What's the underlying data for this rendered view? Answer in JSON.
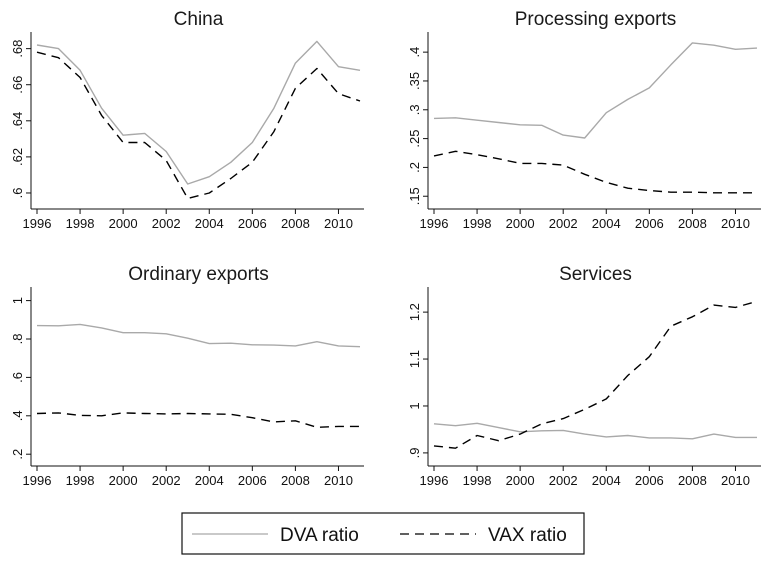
{
  "legend": {
    "dva_label": "DVA ratio",
    "vax_label": "VAX ratio",
    "dva_color": "#a9a9a9",
    "vax_color": "#000000"
  },
  "chart_data": [
    {
      "type": "line",
      "title": "China",
      "x": [
        1996,
        1997,
        1998,
        1999,
        2000,
        2001,
        2002,
        2003,
        2004,
        2005,
        2006,
        2007,
        2008,
        2009,
        2010,
        2011
      ],
      "xticks": [
        "1996",
        "1998",
        "2000",
        "2002",
        "2004",
        "2006",
        "2008",
        "2010"
      ],
      "yticks": [
        ".6",
        ".62",
        ".64",
        ".66",
        ".68"
      ],
      "ylim": [
        0.595,
        0.687
      ],
      "series": [
        {
          "name": "DVA ratio",
          "values": [
            0.682,
            0.68,
            0.668,
            0.647,
            0.632,
            0.633,
            0.623,
            0.605,
            0.609,
            0.617,
            0.628,
            0.647,
            0.672,
            0.684,
            0.67,
            0.668
          ]
        },
        {
          "name": "VAX ratio",
          "values": [
            0.678,
            0.675,
            0.664,
            0.643,
            0.628,
            0.628,
            0.618,
            0.597,
            0.6,
            0.608,
            0.617,
            0.634,
            0.658,
            0.669,
            0.655,
            0.651
          ]
        }
      ]
    },
    {
      "type": "line",
      "title": "Processing exports",
      "x": [
        1996,
        1997,
        1998,
        1999,
        2000,
        2001,
        2002,
        2003,
        2004,
        2005,
        2006,
        2007,
        2008,
        2009,
        2010,
        2011
      ],
      "xticks": [
        "1996",
        "1998",
        "2000",
        "2002",
        "2004",
        "2006",
        "2008",
        "2010"
      ],
      "yticks": [
        ".15",
        ".2",
        ".25",
        ".3",
        ".35",
        ".4"
      ],
      "ylim": [
        0.14,
        0.428
      ],
      "series": [
        {
          "name": "DVA ratio",
          "values": [
            0.285,
            0.286,
            0.282,
            0.278,
            0.274,
            0.273,
            0.256,
            0.251,
            0.295,
            0.318,
            0.338,
            0.378,
            0.416,
            0.412,
            0.405,
            0.407
          ]
        },
        {
          "name": "VAX ratio",
          "values": [
            0.22,
            0.228,
            0.222,
            0.215,
            0.207,
            0.207,
            0.204,
            0.188,
            0.174,
            0.164,
            0.16,
            0.157,
            0.157,
            0.156,
            0.156,
            0.156
          ]
        }
      ]
    },
    {
      "type": "line",
      "title": "Ordinary exports",
      "x": [
        1996,
        1997,
        1998,
        1999,
        2000,
        2001,
        2002,
        2003,
        2004,
        2005,
        2006,
        2007,
        2008,
        2009,
        2010,
        2011
      ],
      "xticks": [
        "1996",
        "1998",
        "2000",
        "2002",
        "2004",
        "2006",
        "2008",
        "2010"
      ],
      "yticks": [
        ".2",
        ".4",
        ".6",
        ".8",
        "1"
      ],
      "ylim": [
        0.175,
        1.05
      ],
      "series": [
        {
          "name": "DVA ratio",
          "values": [
            0.87,
            0.869,
            0.876,
            0.858,
            0.833,
            0.833,
            0.827,
            0.804,
            0.776,
            0.778,
            0.77,
            0.768,
            0.764,
            0.786,
            0.764,
            0.76
          ]
        },
        {
          "name": "VAX ratio",
          "values": [
            0.412,
            0.415,
            0.402,
            0.4,
            0.415,
            0.412,
            0.41,
            0.412,
            0.41,
            0.408,
            0.39,
            0.368,
            0.374,
            0.34,
            0.345,
            0.345
          ]
        }
      ]
    },
    {
      "type": "line",
      "title": "Services",
      "x": [
        1996,
        1997,
        1998,
        1999,
        2000,
        2001,
        2002,
        2003,
        2004,
        2005,
        2006,
        2007,
        2008,
        2009,
        2010,
        2011
      ],
      "xticks": [
        "1996",
        "1998",
        "2000",
        "2002",
        "2004",
        "2006",
        "2008",
        "2010"
      ],
      "yticks": [
        ".9",
        "1",
        "1.1",
        "1.2"
      ],
      "ylim": [
        0.887,
        1.245
      ],
      "series": [
        {
          "name": "DVA ratio",
          "values": [
            0.962,
            0.958,
            0.963,
            0.954,
            0.945,
            0.947,
            0.948,
            0.94,
            0.934,
            0.937,
            0.932,
            0.932,
            0.93,
            0.94,
            0.933,
            0.933
          ]
        },
        {
          "name": "VAX ratio",
          "values": [
            0.915,
            0.91,
            0.937,
            0.926,
            0.94,
            0.962,
            0.973,
            0.993,
            1.015,
            1.065,
            1.105,
            1.17,
            1.19,
            1.215,
            1.21,
            1.223
          ]
        }
      ]
    }
  ]
}
